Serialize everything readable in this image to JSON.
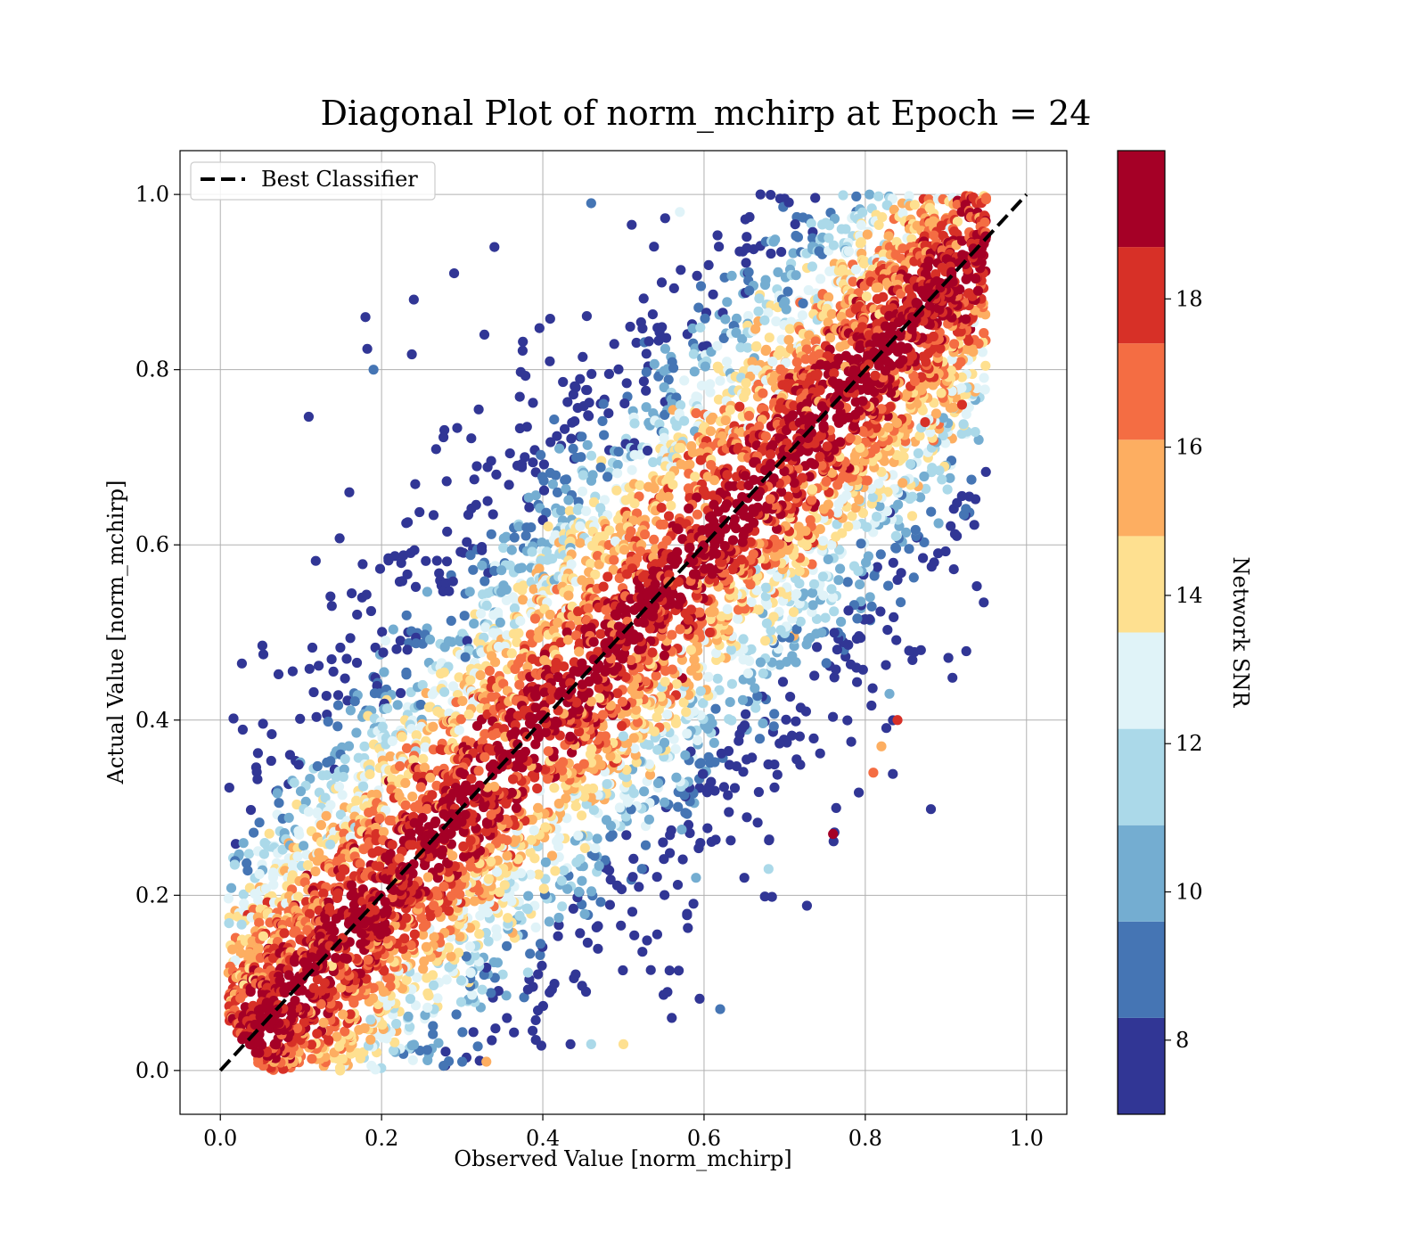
{
  "chart_data": {
    "type": "scatter",
    "title": "Diagonal Plot of norm_mchirp at Epoch = 24",
    "xlabel": "Observed Value [norm_mchirp]",
    "ylabel": "Actual Value [norm_mchirp]",
    "xlim": [
      -0.05,
      1.05
    ],
    "ylim": [
      -0.05,
      1.05
    ],
    "xticks": [
      "0.0",
      "0.2",
      "0.4",
      "0.6",
      "0.8",
      "1.0"
    ],
    "yticks": [
      "0.0",
      "0.2",
      "0.4",
      "0.6",
      "0.8",
      "1.0"
    ],
    "grid": true,
    "legend": {
      "placement": "top-left",
      "entries": [
        {
          "label": "Best Classifier",
          "style": "dashed",
          "color": "#000000"
        }
      ]
    },
    "reference_line": {
      "x": [
        0.0,
        1.0
      ],
      "y": [
        0.0,
        1.0
      ],
      "style": "dashed",
      "color": "#000000"
    },
    "colorbar": {
      "label": "Network SNR",
      "range": [
        7,
        20
      ],
      "ticks": [
        "8",
        "10",
        "12",
        "14",
        "16",
        "18"
      ],
      "bins": [
        {
          "from": 7.0,
          "to": 8.3,
          "color": "#313695"
        },
        {
          "from": 8.3,
          "to": 9.6,
          "color": "#4575b4"
        },
        {
          "from": 9.6,
          "to": 10.9,
          "color": "#74add1"
        },
        {
          "from": 10.9,
          "to": 12.2,
          "color": "#abd9e9"
        },
        {
          "from": 12.2,
          "to": 13.5,
          "color": "#e0f3f8"
        },
        {
          "from": 13.5,
          "to": 14.8,
          "color": "#fee090"
        },
        {
          "from": 14.8,
          "to": 16.1,
          "color": "#fdae61"
        },
        {
          "from": 16.1,
          "to": 17.4,
          "color": "#f46d43"
        },
        {
          "from": 17.4,
          "to": 18.7,
          "color": "#d73027"
        },
        {
          "from": 18.7,
          "to": 20.0,
          "color": "#a50026"
        }
      ]
    },
    "scatter_outliers": [
      {
        "x": 0.18,
        "y": 0.86,
        "snr": 7.5
      },
      {
        "x": 0.19,
        "y": 0.8,
        "snr": 8.8
      },
      {
        "x": 0.34,
        "y": 0.94,
        "snr": 7.5
      },
      {
        "x": 0.29,
        "y": 0.91,
        "snr": 7.5
      },
      {
        "x": 0.24,
        "y": 0.88,
        "snr": 7.5
      },
      {
        "x": 0.16,
        "y": 0.66,
        "snr": 7.5
      },
      {
        "x": 0.94,
        "y": 0.89,
        "snr": 19.5
      },
      {
        "x": 0.92,
        "y": 0.76,
        "snr": 18.0
      },
      {
        "x": 0.84,
        "y": 0.56,
        "snr": 7.5
      },
      {
        "x": 0.84,
        "y": 0.4,
        "snr": 18.0
      },
      {
        "x": 0.83,
        "y": 0.43,
        "snr": 10.0
      },
      {
        "x": 0.76,
        "y": 0.27,
        "snr": 19.5
      },
      {
        "x": 0.81,
        "y": 0.34,
        "snr": 17.0
      },
      {
        "x": 0.82,
        "y": 0.37,
        "snr": 15.0
      },
      {
        "x": 0.62,
        "y": 0.07,
        "snr": 9.0
      },
      {
        "x": 0.56,
        "y": 0.06,
        "snr": 7.5
      },
      {
        "x": 0.46,
        "y": 0.03,
        "snr": 11.5
      },
      {
        "x": 0.5,
        "y": 0.03,
        "snr": 14.0
      },
      {
        "x": 0.33,
        "y": 0.01,
        "snr": 15.5
      },
      {
        "x": 0.3,
        "y": 0.01,
        "snr": 8.5
      },
      {
        "x": 0.67,
        "y": 1.0,
        "snr": 7.5
      },
      {
        "x": 0.46,
        "y": 0.99,
        "snr": 9.5
      },
      {
        "x": 0.57,
        "y": 0.98,
        "snr": 12.5
      },
      {
        "x": 0.59,
        "y": 0.22,
        "snr": 10.5
      },
      {
        "x": 0.65,
        "y": 0.22,
        "snr": 8.0
      },
      {
        "x": 0.68,
        "y": 0.23,
        "snr": 12.0
      }
    ]
  }
}
